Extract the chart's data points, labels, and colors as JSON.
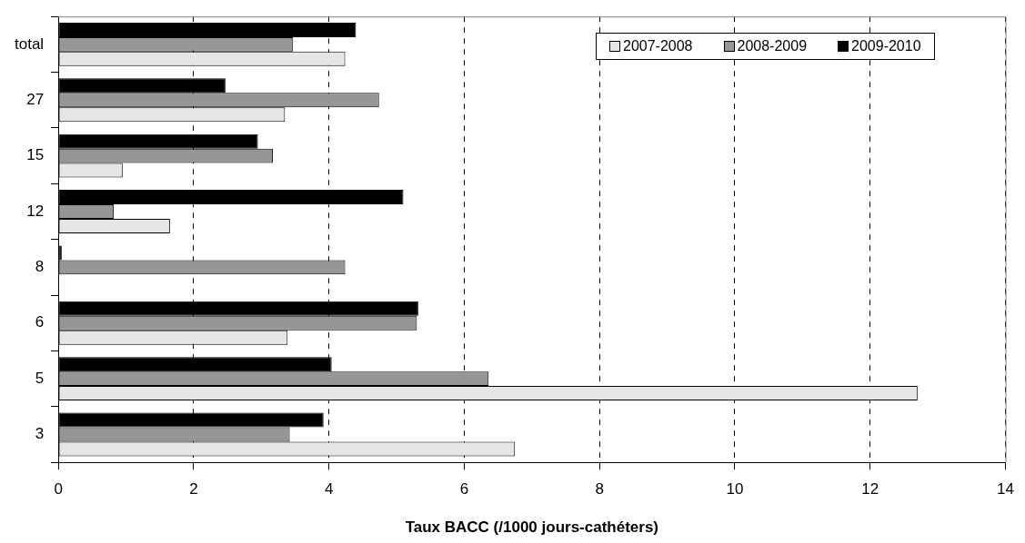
{
  "chart_data": {
    "type": "bar",
    "orientation": "horizontal",
    "xlabel": "Taux BACC (/1000 jours-cathéters)",
    "categories": [
      "total",
      "27",
      "15",
      "12",
      "8",
      "6",
      "5",
      "3"
    ],
    "series": [
      {
        "name": "2007-2008",
        "color": "#e6e6e6",
        "values": [
          4.24,
          3.35,
          0.95,
          1.65,
          null,
          3.39,
          12.7,
          6.75
        ]
      },
      {
        "name": "2008-2009",
        "color": "#969696",
        "values": [
          3.47,
          4.74,
          3.17,
          0.82,
          4.24,
          5.3,
          6.36,
          3.42
        ]
      },
      {
        "name": "2009-2010",
        "color": "#000000",
        "values": [
          4.4,
          2.47,
          2.95,
          5.1,
          0.05,
          5.32,
          4.04,
          3.92
        ]
      }
    ],
    "xlim": [
      0,
      14
    ],
    "xticks": [
      0,
      2,
      4,
      6,
      8,
      10,
      12,
      14
    ],
    "grid": "x",
    "legend": "top right"
  }
}
